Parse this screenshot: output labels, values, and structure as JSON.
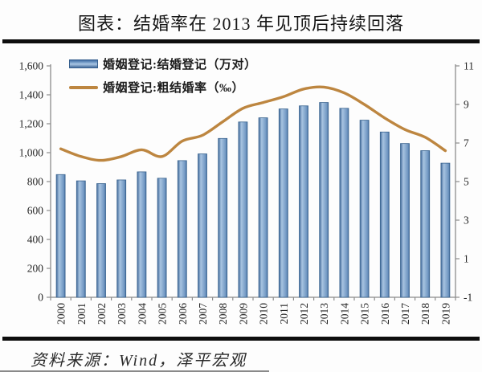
{
  "title": "图表：结婚率在 2013 年见顶后持续回落",
  "source": "资料来源：Wind，泽平宏观",
  "legend": {
    "items": [
      {
        "label": "婚姻登记:结婚登记（万对）",
        "marker": "bar"
      },
      {
        "label": "婚姻登记:粗结婚率（‰）",
        "marker": "line"
      }
    ]
  },
  "chart_data": {
    "type": "bar",
    "title": "图表：结婚率在 2013 年见顶后持续回落",
    "categories": [
      "2000",
      "2001",
      "2002",
      "2003",
      "2004",
      "2005",
      "2006",
      "2007",
      "2008",
      "2009",
      "2010",
      "2011",
      "2012",
      "2013",
      "2014",
      "2015",
      "2016",
      "2017",
      "2018",
      "2019"
    ],
    "series": [
      {
        "name": "婚姻登记:结婚登记（万对）",
        "type": "bar",
        "axis": "left",
        "values": [
          848.5,
          805.0,
          786.0,
          811.4,
          867.2,
          823.1,
          945.0,
          991.4,
          1098.3,
          1212.2,
          1241.0,
          1302.4,
          1323.6,
          1346.9,
          1306.7,
          1224.7,
          1142.8,
          1063.1,
          1013.9,
          927.3
        ]
      },
      {
        "name": "婚姻登记:粗结婚率（‰）",
        "type": "line",
        "axis": "right",
        "values": [
          6.7,
          6.3,
          6.1,
          6.3,
          6.65,
          6.3,
          7.1,
          7.4,
          8.1,
          8.8,
          9.1,
          9.4,
          9.8,
          9.9,
          9.6,
          9.0,
          8.3,
          7.7,
          7.3,
          6.6
        ]
      }
    ],
    "left_axis": {
      "min": 0,
      "max": 1600,
      "step": 200,
      "labels": [
        "0",
        "200",
        "400",
        "600",
        "800",
        "1,000",
        "1,200",
        "1,400",
        "1,600"
      ]
    },
    "right_axis": {
      "min": -1,
      "max": 11,
      "step": 2,
      "labels": [
        "-1",
        "1",
        "3",
        "5",
        "7",
        "9",
        "11"
      ]
    },
    "grid": false,
    "legend_position": "top-left"
  },
  "colors": {
    "bar_dark": "#41699a",
    "bar_light": "#a8c4e1",
    "bar_mid": "#6e95c1",
    "bar_border": "#3a648f",
    "line": "#bd8640",
    "axis": "#8c8c8c",
    "tick_text": "#262626",
    "rule": "#0e0e0e",
    "background": "#fdfdfd"
  }
}
